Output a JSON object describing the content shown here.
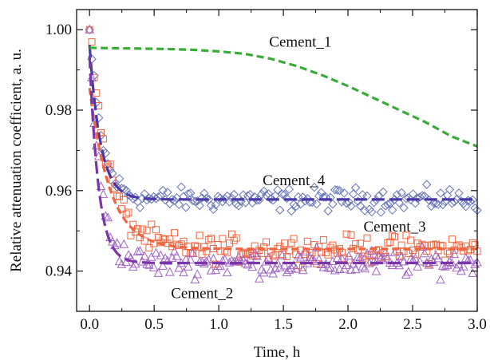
{
  "chart_data": {
    "type": "scatter",
    "title": "",
    "xlabel": "Time, h",
    "ylabel": "Relative attenuation coefficient, a. u.",
    "xlim": [
      -0.1,
      3.0
    ],
    "ylim": [
      0.93,
      1.005
    ],
    "xticks": [
      0.0,
      0.5,
      1.0,
      1.5,
      2.0,
      2.5,
      3.0
    ],
    "xtick_labels": [
      "0.0",
      "0.5",
      "1.0",
      "1.5",
      "2.0",
      "2.5",
      "3.0"
    ],
    "yticks": [
      0.94,
      0.96,
      0.98,
      1.0
    ],
    "ytick_labels": [
      "0.94",
      "0.96",
      "0.98",
      "1.00"
    ],
    "grid": false,
    "legend": "none",
    "series": [
      {
        "name": "Cement_1",
        "color": "#3aaa3a",
        "marker": "none",
        "line": "dashed",
        "fit": {
          "x": [
            0,
            0.2,
            0.4,
            0.6,
            0.8,
            1.0,
            1.2,
            1.4,
            1.6,
            1.8,
            2.0,
            2.2,
            2.4,
            2.6,
            2.8,
            3.0
          ],
          "y": [
            0.9955,
            0.9954,
            0.9953,
            0.9952,
            0.995,
            0.9946,
            0.994,
            0.9928,
            0.991,
            0.9887,
            0.986,
            0.983,
            0.98,
            0.977,
            0.9735,
            0.971
          ]
        }
      },
      {
        "name": "Cement_4",
        "color": "#6674b8",
        "fit_color": "#4a37a6",
        "marker": "diamond",
        "line": "long-dash",
        "points": {
          "t0": 1.0,
          "A": 0.0422,
          "tau": 0.09,
          "yinf": 0.9578,
          "noise": 0.0024,
          "n": 170,
          "xmin": 0.0,
          "xmax": 3.0
        },
        "fit": {
          "t0": 0.9962,
          "A": 0.0384,
          "tau": 0.085,
          "yinf": 0.9578
        }
      },
      {
        "name": "Cement_3",
        "color": "#f2643d",
        "fit_color": "#f2643d",
        "marker": "square",
        "line": "dashed",
        "points": {
          "t0": 1.0,
          "A": 0.0545,
          "tau": 0.15,
          "yinf": 0.9455,
          "noise": 0.0028,
          "n": 170,
          "xmin": 0.0,
          "xmax": 3.0
        },
        "fit": {
          "t0": 0.9855,
          "A": 0.04,
          "tau": 0.16,
          "yinf": 0.9455
        }
      },
      {
        "name": "Cement_2",
        "color": "#a065c4",
        "fit_color": "#7a35a8",
        "marker": "triangle",
        "line": "long-dash",
        "points": {
          "t0": 1.0,
          "A": 0.058,
          "tau": 0.08,
          "yinf": 0.942,
          "noise": 0.0028,
          "n": 170,
          "xmin": 0.0,
          "xmax": 3.0
        },
        "fit": {
          "t0": 0.9935,
          "A": 0.0515,
          "tau": 0.07,
          "yinf": 0.942
        }
      }
    ],
    "annotations": [
      {
        "series": "Cement_1",
        "text": "Cement_1",
        "x": 1.39,
        "y": 0.997
      },
      {
        "series": "Cement_4",
        "text": "Cement_4",
        "x": 1.34,
        "y": 0.9625
      },
      {
        "series": "Cement_3",
        "text": "Cement_3",
        "x": 2.12,
        "y": 0.951
      },
      {
        "series": "Cement_2",
        "text": "Cement_2",
        "x": 0.63,
        "y": 0.9345
      }
    ]
  }
}
